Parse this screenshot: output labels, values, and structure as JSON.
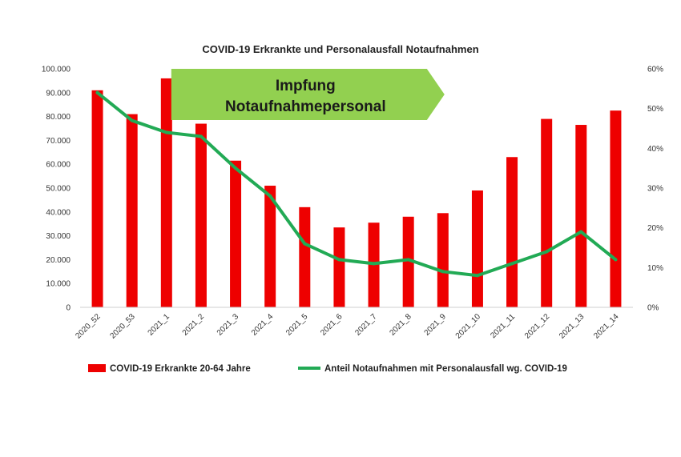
{
  "chart_data": {
    "type": "bar",
    "title": "COVID-19 Erkrankte und Personalausfall Notaufnahmen",
    "categories": [
      "2020_52",
      "2020_53",
      "2021_1",
      "2021_2",
      "2021_3",
      "2021_4",
      "2021_5",
      "2021_6",
      "2021_7",
      "2021_8",
      "2021_9",
      "2021_10",
      "2021_11",
      "2021_12",
      "2021_13",
      "2021_14"
    ],
    "series": [
      {
        "name": "COVID-19 Erkrankte 20-64 Jahre",
        "type": "bar",
        "axis": "left",
        "color": "#ee0000",
        "values": [
          91000,
          81000,
          96000,
          77000,
          61500,
          51000,
          42000,
          33500,
          35500,
          38000,
          39500,
          49000,
          63000,
          79000,
          76500,
          82500
        ]
      },
      {
        "name": "Anteil Notaufnahmen mit Personalausfall wg. COVID-19",
        "type": "line",
        "axis": "right",
        "color": "#22aa55",
        "values": [
          0.54,
          0.47,
          0.44,
          0.43,
          0.35,
          0.28,
          0.16,
          0.12,
          0.11,
          0.12,
          0.09,
          0.08,
          0.11,
          0.14,
          0.19,
          0.12
        ]
      }
    ],
    "y_left": {
      "ylim": [
        0,
        100000
      ],
      "ticks": [
        "0",
        "10.000",
        "20.000",
        "30.000",
        "40.000",
        "50.000",
        "60.000",
        "70.000",
        "80.000",
        "90.000",
        "100.000"
      ]
    },
    "y_right": {
      "ylim": [
        0,
        0.6
      ],
      "ticks": [
        "0%",
        "10%",
        "20%",
        "30%",
        "40%",
        "50%",
        "60%"
      ]
    },
    "grid": false,
    "legend_placement": "bottom",
    "annotation": {
      "lines": [
        "Impfung",
        "Notaufnahmepersonal"
      ],
      "color": "#92d050",
      "from_category": "2021_1",
      "to_category": "2021_9"
    }
  }
}
